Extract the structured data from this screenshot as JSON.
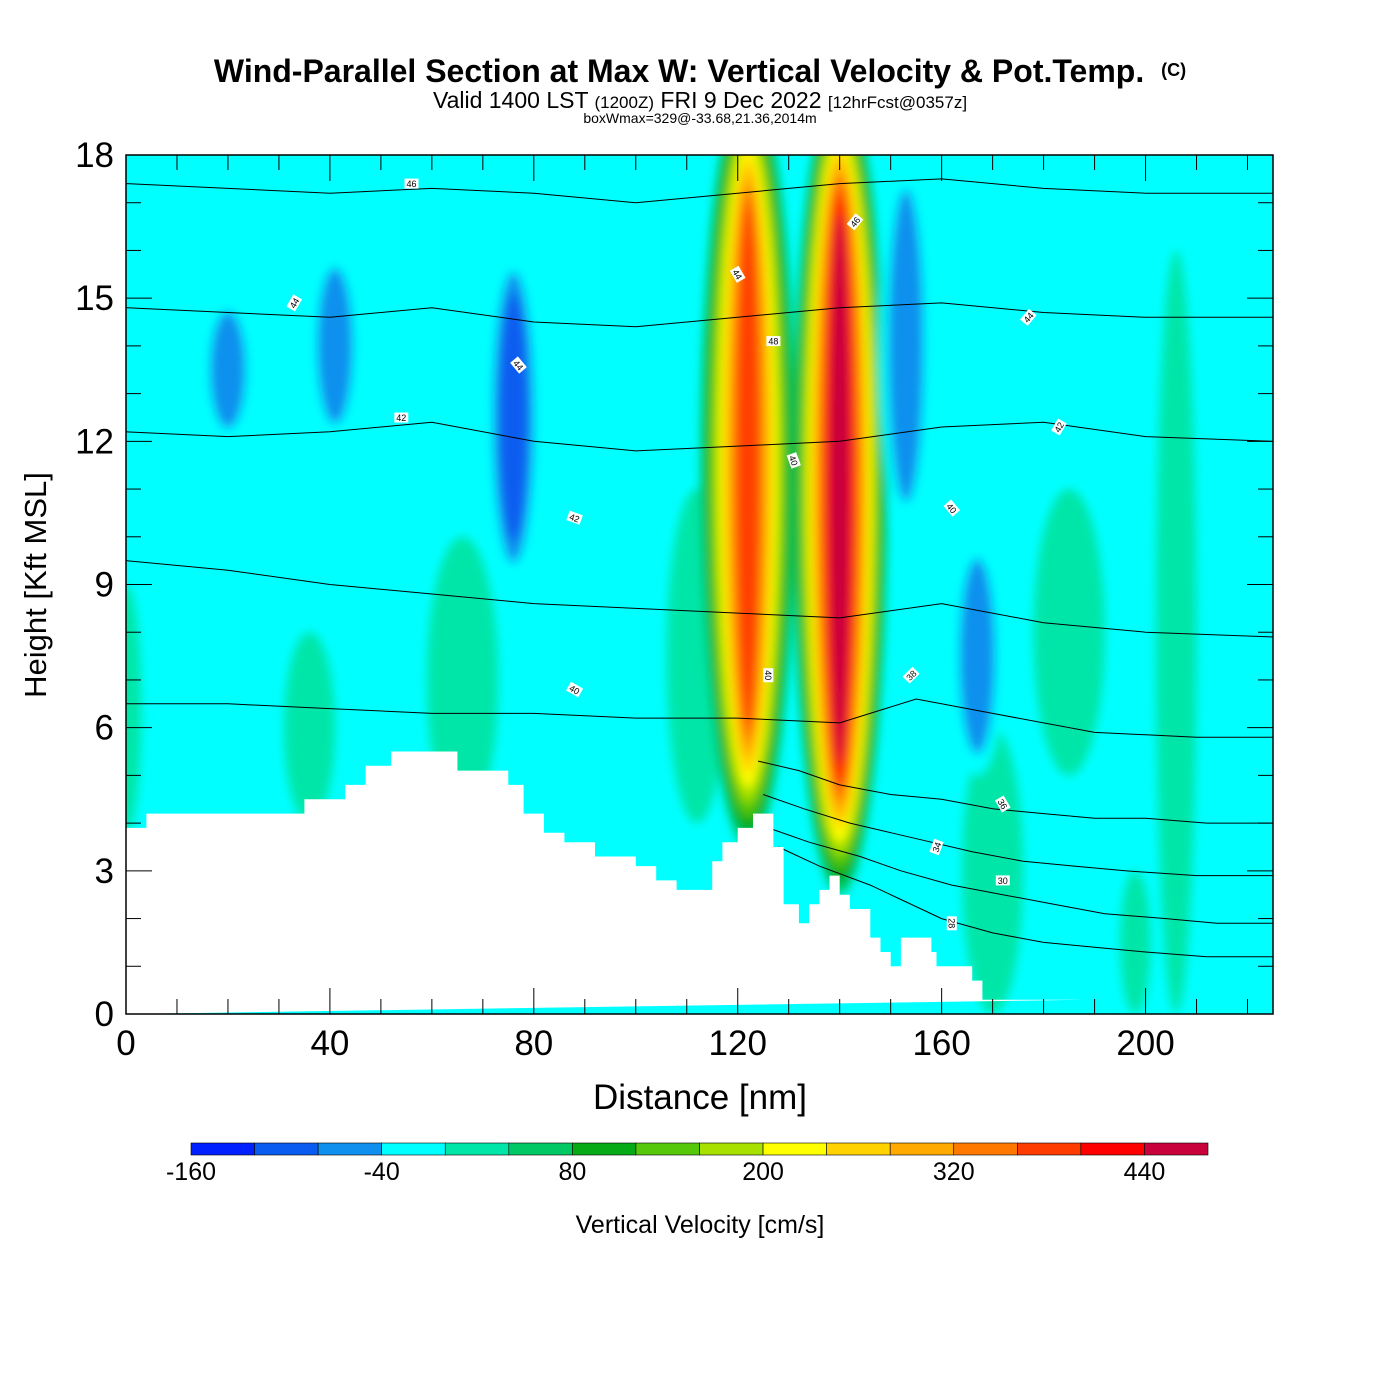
{
  "header": {
    "title": "Wind-Parallel Section at Max W: Vertical Velocity & Pot.Temp.",
    "copyright": "(C)",
    "valid_main": "Valid 1400 LST",
    "valid_utc": "(1200Z)",
    "valid_date": "FRI 9 Dec 2022",
    "valid_fcst": "[12hrFcst@0357z]",
    "boxwmax": "boxWmax=329@-33.68,21.36,2014m"
  },
  "chart_data": {
    "type": "heatmap",
    "xlabel": "Distance [nm]",
    "ylabel": "Height [Kft MSL]",
    "xlim": [
      0,
      225
    ],
    "ylim": [
      0,
      18
    ],
    "x_ticks": [
      "0",
      "40",
      "80",
      "120",
      "160",
      "200"
    ],
    "x_tick_values": [
      0,
      40,
      80,
      120,
      160,
      200
    ],
    "y_ticks": [
      "0",
      "3",
      "6",
      "9",
      "12",
      "15",
      "18"
    ],
    "y_tick_values": [
      0,
      3,
      6,
      9,
      12,
      15,
      18
    ],
    "colorbar": {
      "label": "Vertical Velocity [cm/s]",
      "levels": [
        -160,
        -120,
        -80,
        -40,
        0,
        40,
        80,
        120,
        160,
        200,
        240,
        280,
        320,
        360,
        400,
        440,
        480
      ],
      "tick_labels": [
        "-160",
        "-40",
        "80",
        "200",
        "320",
        "440"
      ],
      "tick_values": [
        -160,
        -40,
        80,
        200,
        320,
        440
      ],
      "colors": [
        "#0020ff",
        "#0a5cf0",
        "#1090ee",
        "#00ffff",
        "#00e6a8",
        "#00c864",
        "#05aa14",
        "#55c80a",
        "#a8e000",
        "#ffff00",
        "#ffd200",
        "#ffaa00",
        "#ff7800",
        "#ff3c00",
        "#ff0000",
        "#c8003c"
      ]
    },
    "velocity_features": [
      {
        "kind": "updraft",
        "x": 122,
        "y_from": 5,
        "y_to": 18,
        "peak": 400
      },
      {
        "kind": "updraft",
        "x": 140,
        "y_from": 4,
        "y_to": 18,
        "peak": 460
      },
      {
        "kind": "downdraft",
        "x": 76,
        "y_from": 9,
        "y_to": 16,
        "peak": -150
      },
      {
        "kind": "downdraft",
        "x": 41,
        "y_from": 12,
        "y_to": 16,
        "peak": -120
      },
      {
        "kind": "downdraft",
        "x": 20,
        "y_from": 12,
        "y_to": 15,
        "peak": -90
      },
      {
        "kind": "downdraft",
        "x": 153,
        "y_from": 10,
        "y_to": 18,
        "peak": -120
      },
      {
        "kind": "downdraft",
        "x": 167,
        "y_from": 5,
        "y_to": 10,
        "peak": -90
      }
    ],
    "terrain_height_kft": {
      "x": [
        0,
        4,
        4,
        35,
        35,
        43,
        43,
        47,
        47,
        52,
        52,
        65,
        65,
        75,
        75,
        78,
        78,
        82,
        82,
        86,
        86,
        92,
        92,
        100,
        100,
        104,
        104,
        108,
        108,
        115,
        115,
        117,
        117,
        120,
        120,
        123,
        123,
        127,
        127,
        129,
        129,
        132,
        132,
        134,
        134,
        136,
        136,
        138,
        138,
        140,
        140,
        142,
        142,
        146,
        146,
        148,
        148,
        150,
        150,
        152,
        152,
        158,
        158,
        159,
        159,
        166,
        166,
        168,
        168,
        188,
        188,
        225
      ],
      "y": [
        3.9,
        3.9,
        4.2,
        4.2,
        4.5,
        4.5,
        4.8,
        4.8,
        5.2,
        5.2,
        5.5,
        5.5,
        5.1,
        5.1,
        4.8,
        4.8,
        4.2,
        4.2,
        3.8,
        3.8,
        3.6,
        3.6,
        3.3,
        3.3,
        3.1,
        3.1,
        2.8,
        2.8,
        2.6,
        2.6,
        3.2,
        3.2,
        3.6,
        3.6,
        3.9,
        3.9,
        4.2,
        4.2,
        3.5,
        3.5,
        2.3,
        2.3,
        1.9,
        1.9,
        2.3,
        2.3,
        2.6,
        2.6,
        2.9,
        2.9,
        2.5,
        2.5,
        2.2,
        2.2,
        1.6,
        1.6,
        1.3,
        1.3,
        1.0,
        1.0,
        1.6,
        1.6,
        1.3,
        1.3,
        1.0,
        1.0,
        0.7,
        0.7,
        0.3,
        0.3,
        0.3
      ]
    },
    "theta_contours_kft": [
      {
        "label": "28",
        "x": [
          128,
          136,
          146,
          152,
          160,
          170,
          180,
          190,
          200,
          212,
          225
        ],
        "y": [
          3.5,
          3.1,
          2.7,
          2.4,
          2.0,
          1.7,
          1.5,
          1.4,
          1.3,
          1.2,
          1.2
        ]
      },
      {
        "label": "30",
        "x": [
          126,
          134,
          144,
          152,
          162,
          172,
          182,
          192,
          204,
          214,
          225
        ],
        "y": [
          3.9,
          3.6,
          3.3,
          3.0,
          2.7,
          2.5,
          2.3,
          2.1,
          2.0,
          1.9,
          1.9
        ]
      },
      {
        "label": "34",
        "x": [
          125,
          133,
          142,
          150,
          158,
          166,
          176,
          186,
          196,
          210,
          225
        ],
        "y": [
          4.6,
          4.3,
          4.0,
          3.8,
          3.6,
          3.4,
          3.2,
          3.1,
          3.0,
          2.9,
          2.9
        ]
      },
      {
        "label": "36",
        "x": [
          124,
          132,
          140,
          150,
          160,
          170,
          180,
          190,
          200,
          212,
          225
        ],
        "y": [
          5.3,
          5.1,
          4.8,
          4.6,
          4.5,
          4.3,
          4.2,
          4.1,
          4.1,
          4.0,
          4.0
        ]
      },
      {
        "label": "38",
        "x": [
          0,
          20,
          40,
          60,
          80,
          100,
          120,
          140,
          155,
          170,
          190,
          210,
          225
        ],
        "y": [
          6.5,
          6.5,
          6.4,
          6.3,
          6.3,
          6.2,
          6.2,
          6.1,
          6.6,
          6.3,
          5.9,
          5.8,
          5.8
        ]
      },
      {
        "label": "40",
        "x": [
          0,
          20,
          40,
          60,
          80,
          100,
          120,
          140,
          160,
          180,
          200,
          225
        ],
        "y": [
          9.5,
          9.3,
          9.0,
          8.8,
          8.6,
          8.5,
          8.4,
          8.3,
          8.6,
          8.2,
          8.0,
          7.9
        ]
      },
      {
        "label": "42",
        "x": [
          0,
          20,
          40,
          60,
          80,
          100,
          120,
          140,
          160,
          180,
          200,
          225
        ],
        "y": [
          12.2,
          12.1,
          12.2,
          12.4,
          12.0,
          11.8,
          11.9,
          12.0,
          12.3,
          12.4,
          12.1,
          12.0
        ]
      },
      {
        "label": "44",
        "x": [
          0,
          20,
          40,
          60,
          80,
          100,
          120,
          140,
          160,
          180,
          200,
          225
        ],
        "y": [
          14.8,
          14.7,
          14.6,
          14.8,
          14.5,
          14.4,
          14.6,
          14.8,
          14.9,
          14.7,
          14.6,
          14.6
        ]
      },
      {
        "label": "46",
        "x": [
          0,
          20,
          40,
          60,
          80,
          100,
          120,
          140,
          160,
          180,
          200,
          225
        ],
        "y": [
          17.4,
          17.3,
          17.2,
          17.3,
          17.2,
          17.0,
          17.2,
          17.4,
          17.5,
          17.3,
          17.2,
          17.2
        ]
      }
    ],
    "contour_labels": [
      {
        "text": "46",
        "x": 56,
        "y": 17.4,
        "angle": 0
      },
      {
        "text": "44",
        "x": 33,
        "y": 14.9,
        "angle": -60
      },
      {
        "text": "42",
        "x": 54,
        "y": 12.5,
        "angle": 0
      },
      {
        "text": "44",
        "x": 77,
        "y": 13.6,
        "angle": 50
      },
      {
        "text": "42",
        "x": 88,
        "y": 10.4,
        "angle": 20
      },
      {
        "text": "44",
        "x": 120,
        "y": 15.5,
        "angle": 60
      },
      {
        "text": "48",
        "x": 127,
        "y": 14.1,
        "angle": 0
      },
      {
        "text": "46",
        "x": 143,
        "y": 16.6,
        "angle": -50
      },
      {
        "text": "40",
        "x": 131,
        "y": 11.6,
        "angle": 70
      },
      {
        "text": "40",
        "x": 126,
        "y": 7.1,
        "angle": 90
      },
      {
        "text": "40",
        "x": 88,
        "y": 6.8,
        "angle": 30
      },
      {
        "text": "38",
        "x": 154,
        "y": 7.1,
        "angle": -45
      },
      {
        "text": "40",
        "x": 162,
        "y": 10.6,
        "angle": 50
      },
      {
        "text": "44",
        "x": 177,
        "y": 14.6,
        "angle": -50
      },
      {
        "text": "42",
        "x": 183,
        "y": 12.3,
        "angle": -60
      },
      {
        "text": "36",
        "x": 172,
        "y": 4.4,
        "angle": 60
      },
      {
        "text": "34",
        "x": 159,
        "y": 3.5,
        "angle": -70
      },
      {
        "text": "30",
        "x": 172,
        "y": 2.8,
        "angle": 0
      },
      {
        "text": "28",
        "x": 162,
        "y": 1.9,
        "angle": 90
      }
    ]
  }
}
